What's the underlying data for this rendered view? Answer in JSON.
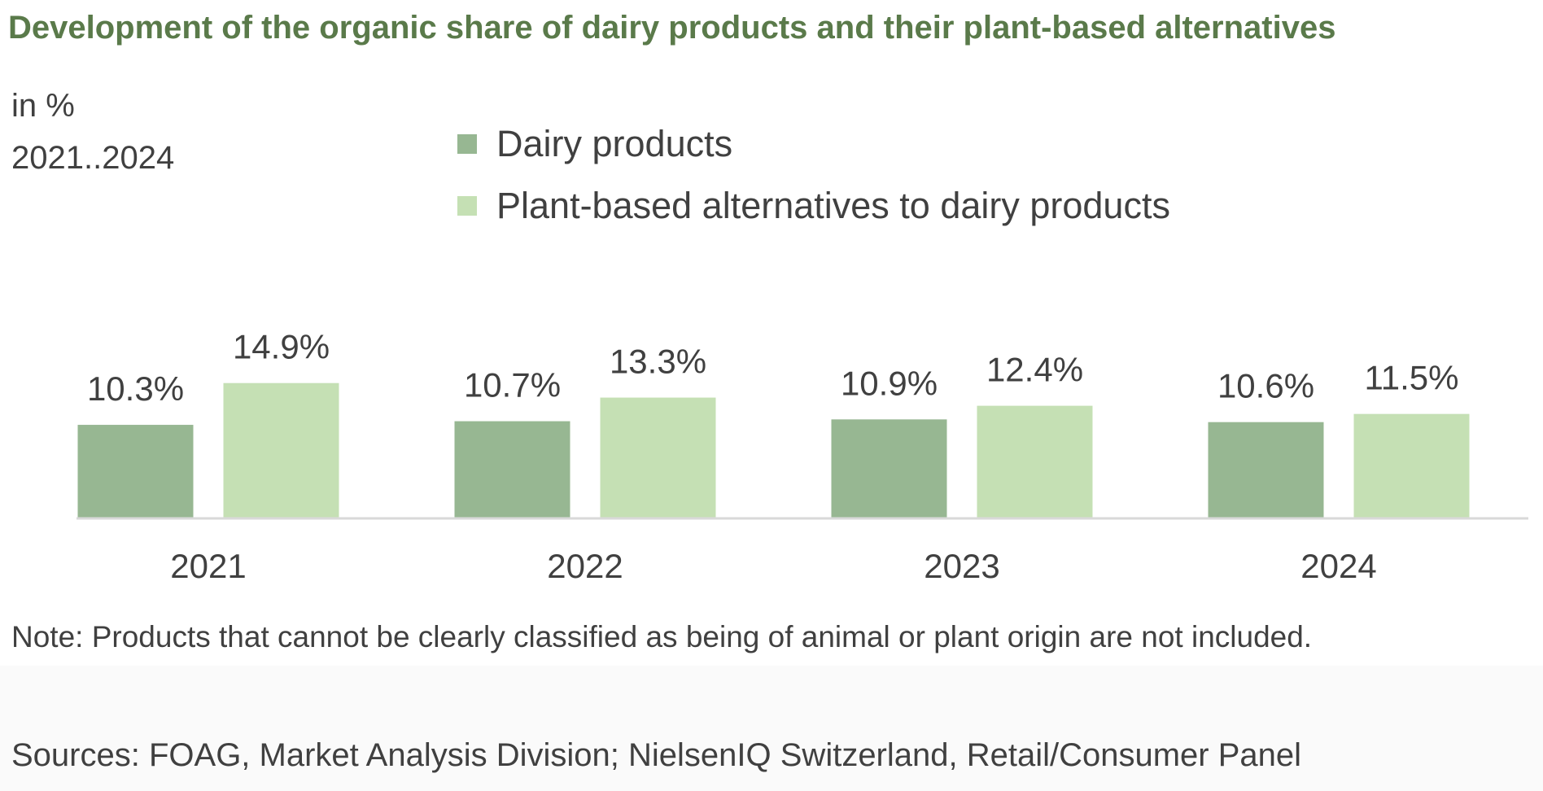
{
  "header": {
    "title": "Development of the organic share of dairy products and their plant-based alternatives",
    "unit": "in %",
    "period": "2021..2024"
  },
  "footer": {
    "note": "Note: Products that cannot be clearly classified as being of animal or plant origin are not included.",
    "sources": "Sources: FOAG, Market Analysis Division; NielsenIQ Switzerland, Retail/Consumer Panel"
  },
  "colors": {
    "title": "#5a7a4a",
    "text": "#404040",
    "axis": "#d9d9d9",
    "dairy": "#97b792",
    "plant": "#c5e0b4"
  },
  "chart_data": {
    "type": "bar",
    "categories": [
      "2021",
      "2022",
      "2023",
      "2024"
    ],
    "series": [
      {
        "name": "Dairy products",
        "values": [
          10.3,
          10.7,
          10.9,
          10.6
        ],
        "labels": [
          "10.3%",
          "10.7%",
          "10.9%",
          "10.6%"
        ],
        "color": "#97b792"
      },
      {
        "name": "Plant-based alternatives to dairy products",
        "values": [
          14.9,
          13.3,
          12.4,
          11.5
        ],
        "labels": [
          "14.9%",
          "13.3%",
          "12.4%",
          "11.5%"
        ],
        "color": "#c5e0b4"
      }
    ],
    "ylim": [
      0,
      16
    ],
    "grid": false,
    "legend": "top-center"
  }
}
